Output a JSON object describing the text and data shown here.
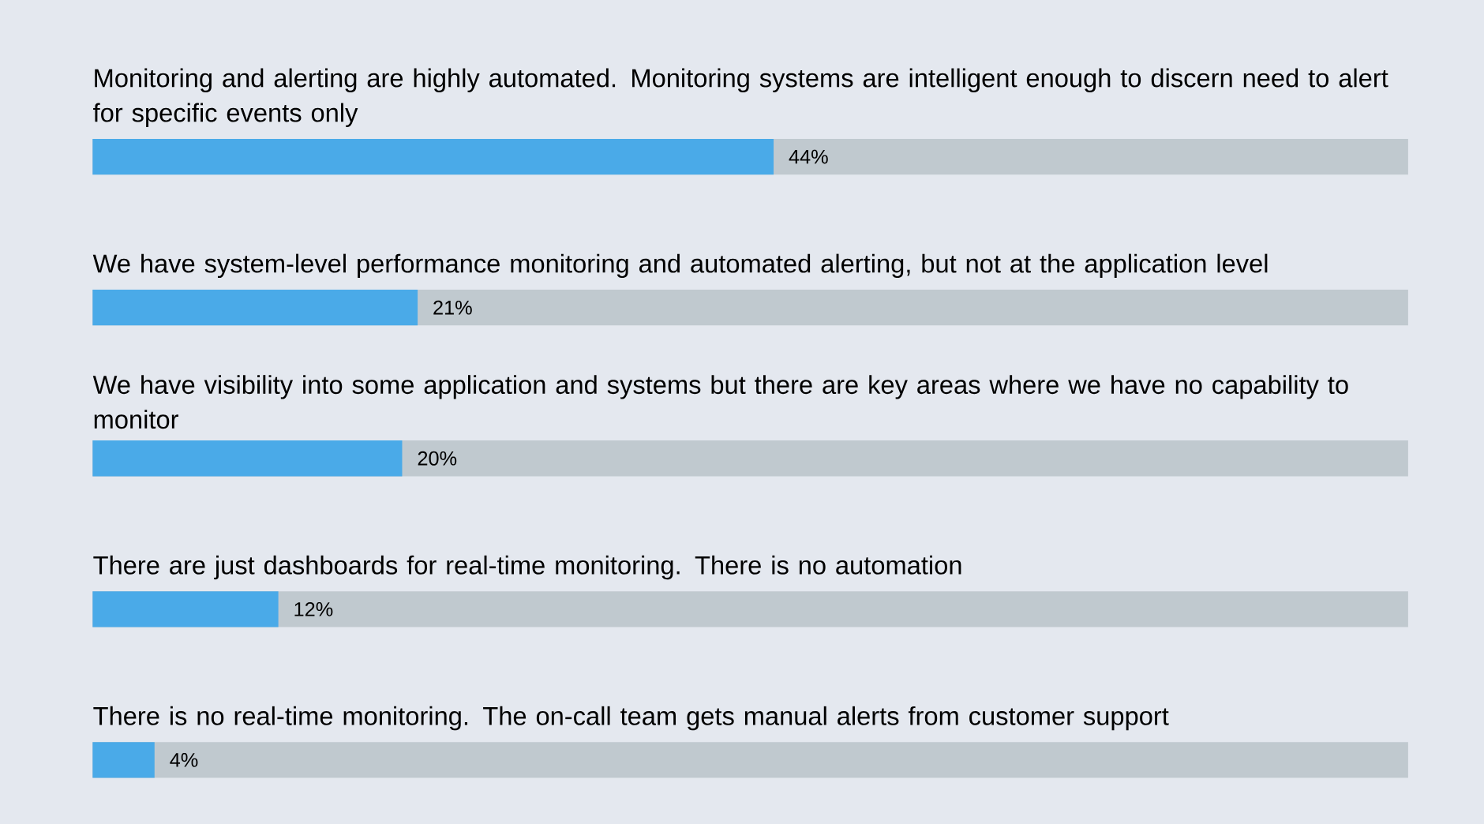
{
  "chart_data": {
    "type": "bar",
    "orientation": "horizontal",
    "categories": [
      "Monitoring and alerting are highly automated. Monitoring systems are intelligent enough to discern need to alert for specific events only",
      "We have system-level performance monitoring and automated alerting, but not at the application level",
      "We have visibility into some application and systems but there are key areas where we have no capability to monitor",
      "There are just dashboards for real-time monitoring. There is no automation",
      "There is no real-time monitoring. The on-call team gets manual alerts from customer support"
    ],
    "values": [
      44,
      21,
      20,
      12,
      4
    ],
    "value_labels": [
      "44%",
      "21%",
      "20%",
      "12%",
      "4%"
    ],
    "color": "#4aaae8",
    "xlim": [
      0,
      85
    ]
  }
}
